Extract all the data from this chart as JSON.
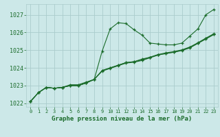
{
  "background_color": "#cce8e8",
  "grid_color": "#aacccc",
  "line_color": "#1a6b2a",
  "title": "Graphe pression niveau de la mer (hPa)",
  "ylim": [
    1021.8,
    1027.6
  ],
  "xlim": [
    -0.5,
    23.5
  ],
  "yticks": [
    1022,
    1023,
    1024,
    1025,
    1026,
    1027
  ],
  "xticks": [
    0,
    1,
    2,
    3,
    4,
    5,
    6,
    7,
    8,
    9,
    10,
    11,
    12,
    13,
    14,
    15,
    16,
    17,
    18,
    19,
    20,
    21,
    22,
    23
  ],
  "series": [
    [
      1022.1,
      1022.6,
      1022.9,
      1022.85,
      1022.9,
      1023.05,
      1023.05,
      1023.2,
      1023.35,
      1024.95,
      1026.2,
      1026.55,
      1026.5,
      1026.15,
      1025.85,
      1025.4,
      1025.35,
      1025.3,
      1025.3,
      1025.4,
      1025.8,
      1026.2,
      1027.0,
      1027.3
    ],
    [
      1022.1,
      1022.6,
      1022.9,
      1022.85,
      1022.9,
      1023.0,
      1023.0,
      1023.15,
      1023.35,
      1023.85,
      1024.0,
      1024.15,
      1024.3,
      1024.35,
      1024.45,
      1024.6,
      1024.75,
      1024.8,
      1024.9,
      1025.0,
      1025.15,
      1025.4,
      1025.65,
      1025.9
    ],
    [
      1022.1,
      1022.6,
      1022.9,
      1022.85,
      1022.9,
      1023.0,
      1023.0,
      1023.15,
      1023.35,
      1023.85,
      1024.0,
      1024.15,
      1024.3,
      1024.35,
      1024.5,
      1024.6,
      1024.75,
      1024.85,
      1024.92,
      1025.02,
      1025.18,
      1025.42,
      1025.68,
      1025.93
    ],
    [
      1022.1,
      1022.6,
      1022.9,
      1022.85,
      1022.9,
      1023.0,
      1023.0,
      1023.15,
      1023.35,
      1023.82,
      1023.97,
      1024.12,
      1024.27,
      1024.32,
      1024.42,
      1024.57,
      1024.72,
      1024.82,
      1024.88,
      1024.98,
      1025.13,
      1025.38,
      1025.63,
      1025.88
    ]
  ]
}
